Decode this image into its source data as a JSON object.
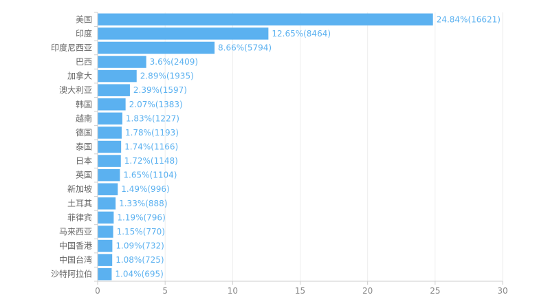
{
  "chart_data": {
    "type": "bar",
    "orientation": "horizontal",
    "categories": [
      "美国",
      "印度",
      "印度尼西亚",
      "巴西",
      "加拿大",
      "澳大利亚",
      "韩国",
      "越南",
      "德国",
      "泰国",
      "日本",
      "英国",
      "新加坡",
      "土耳其",
      "菲律宾",
      "马来西亚",
      "中国香港",
      "中国台湾",
      "沙特阿拉伯"
    ],
    "values": [
      24.84,
      12.65,
      8.66,
      3.6,
      2.89,
      2.39,
      2.07,
      1.83,
      1.78,
      1.74,
      1.72,
      1.65,
      1.49,
      1.33,
      1.19,
      1.15,
      1.09,
      1.08,
      1.04
    ],
    "data_labels": [
      "24.84%(16621)",
      "12.65%(8464)",
      "8.66%(5794)",
      "3.6%(2409)",
      "2.89%(1935)",
      "2.39%(1597)",
      "2.07%(1383)",
      "1.83%(1227)",
      "1.78%(1193)",
      "1.74%(1166)",
      "1.72%(1148)",
      "1.65%(1104)",
      "1.49%(996)",
      "1.33%(888)",
      "1.19%(796)",
      "1.15%(770)",
      "1.09%(732)",
      "1.08%(725)",
      "1.04%(695)"
    ],
    "xlim": [
      0,
      30
    ],
    "x_ticks": [
      "0",
      "5",
      "10",
      "15",
      "20",
      "25",
      "30"
    ],
    "grid": true,
    "colors": {
      "bar": "#5BB1F0",
      "label": "#5BB1F0",
      "grid": "#eeeeee",
      "axis": "#cccccc"
    }
  }
}
